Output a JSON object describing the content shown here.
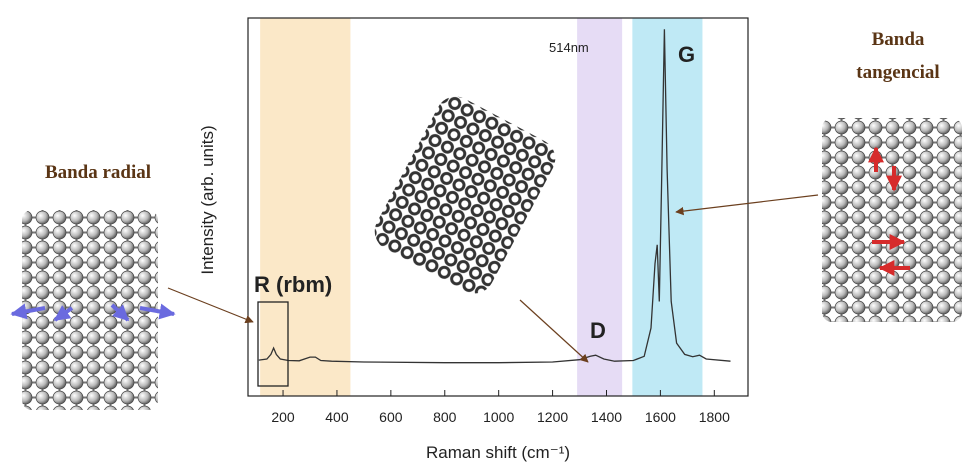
{
  "chart_data": {
    "type": "line",
    "xlabel": "Raman shift (cm⁻¹)",
    "ylabel": "Intensity (arb. units)",
    "xlim": [
      70,
      1925
    ],
    "xticks": [
      200,
      400,
      600,
      800,
      1000,
      1200,
      1400,
      1600,
      1800
    ],
    "ylim": [
      0,
      100
    ],
    "series": [
      {
        "color": "#333333",
        "x": [
          110,
          140,
          155,
          165,
          175,
          190,
          220,
          260,
          300,
          320,
          340,
          380,
          500,
          800,
          1000,
          1200,
          1300,
          1340,
          1360,
          1390,
          1430,
          1500,
          1540,
          1565,
          1580,
          1588,
          1596,
          1604,
          1615,
          1625,
          1640,
          1660,
          1690,
          1720,
          1745,
          1770,
          1860
        ],
        "values": [
          9.5,
          9.8,
          11,
          12.7,
          11,
          9.8,
          9.4,
          9.3,
          10.3,
          10.3,
          9.4,
          9.2,
          9.0,
          8.8,
          8.8,
          9.0,
          9.6,
          10.5,
          10.8,
          9.8,
          9.2,
          9.4,
          10.5,
          18,
          35,
          40,
          25,
          55,
          97,
          60,
          25,
          14,
          11,
          10.4,
          10.8,
          9.8,
          9.2
        ]
      }
    ],
    "bands": [
      {
        "x0": 115,
        "x1": 450,
        "color": "#fbe8c8"
      },
      {
        "x0": 1291,
        "x1": 1458,
        "color": "#e6dcf5"
      },
      {
        "x0": 1496,
        "x1": 1756,
        "color": "#bfe9f5"
      }
    ],
    "annotations": {
      "laser": "514nm",
      "g": "G",
      "d": "D",
      "rbm": "R (rbm)",
      "radial": "Banda radial",
      "tangencial": [
        "Banda",
        "tangencial"
      ]
    }
  }
}
